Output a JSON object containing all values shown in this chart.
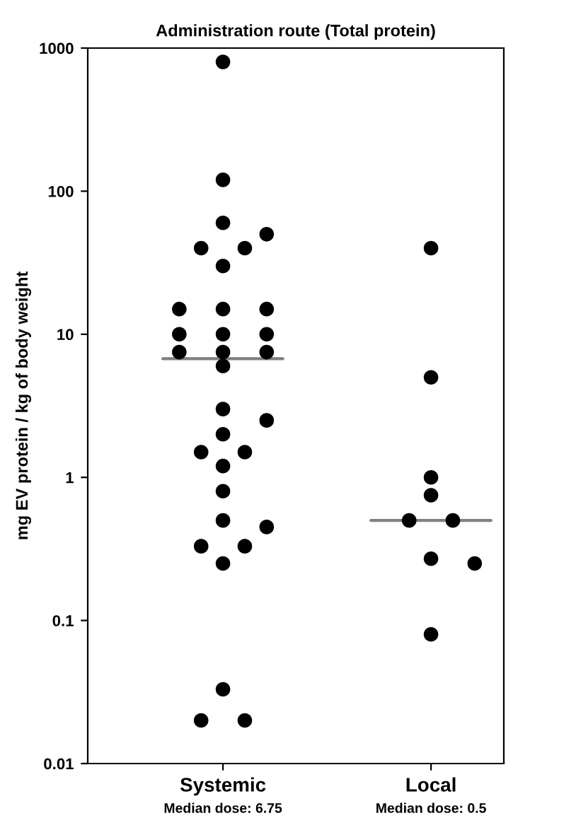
{
  "chart_data": {
    "type": "scatter",
    "title": "Administration route (Total protein)",
    "ylabel": "mg EV protein / kg of body weight",
    "categories": [
      "Systemic",
      "Local"
    ],
    "log": true,
    "ylim": [
      0.01,
      1000
    ],
    "yticks": [
      0.01,
      0.1,
      1,
      10,
      100,
      1000
    ],
    "grid": false,
    "marker": "circle",
    "series": [
      {
        "color": "#000000",
        "x": [
          "Systemic",
          "Systemic",
          "Systemic",
          "Systemic",
          "Systemic",
          "Systemic",
          "Systemic",
          "Systemic",
          "Systemic",
          "Systemic",
          "Systemic",
          "Systemic",
          "Systemic",
          "Systemic",
          "Systemic",
          "Systemic",
          "Systemic",
          "Systemic",
          "Systemic",
          "Systemic",
          "Systemic",
          "Systemic",
          "Systemic",
          "Systemic",
          "Systemic",
          "Systemic",
          "Systemic",
          "Systemic",
          "Systemic",
          "Systemic",
          "Systemic",
          "Systemic",
          "Local",
          "Local",
          "Local",
          "Local",
          "Local",
          "Local",
          "Local",
          "Local",
          "Local"
        ],
        "values": [
          800,
          120,
          60,
          50,
          40,
          40,
          30,
          15,
          15,
          15,
          10,
          10,
          10,
          7.5,
          7.5,
          7.5,
          6,
          3,
          2.5,
          2,
          1.5,
          1.5,
          1.2,
          0.8,
          0.5,
          0.45,
          0.33,
          0.33,
          0.25,
          0.033,
          0.02,
          0.02,
          40,
          5,
          1,
          0.75,
          0.5,
          0.5,
          0.27,
          0.25,
          0.08
        ]
      },
      {
        "type": "box",
        "color": "#808080",
        "boxes": [
          {
            "low": 6.75,
            "q1": 6.75,
            "median": 6.75,
            "q3": 6.75,
            "high": 6.75
          },
          {
            "low": 0.5,
            "q1": 0.5,
            "median": 0.5,
            "q3": 0.5,
            "high": 0.5
          }
        ]
      }
    ],
    "annotations": [
      "Median dose: 6.75",
      "Median dose: 0.5"
    ]
  }
}
